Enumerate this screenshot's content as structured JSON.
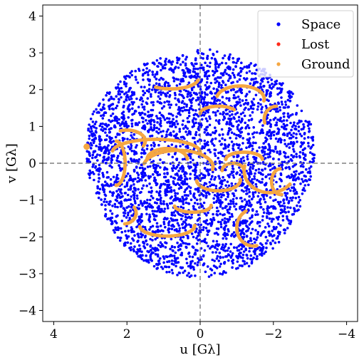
{
  "chart_data": {
    "type": "scatter",
    "title": "",
    "xlabel": "u [Gλ]",
    "ylabel": "v [Gλ]",
    "xlim": [
      4.3,
      -4.3
    ],
    "ylim": [
      -4.3,
      4.3
    ],
    "x_inverted": true,
    "xticks": [
      4,
      2,
      0,
      -2,
      -4
    ],
    "xtick_labels": [
      "4",
      "2",
      "0",
      "−2",
      "−4"
    ],
    "yticks": [
      -4,
      -3,
      -2,
      -1,
      0,
      1,
      2,
      3,
      4
    ],
    "ytick_labels": [
      "−4",
      "−3",
      "−2",
      "−1",
      "0",
      "1",
      "2",
      "3",
      "4"
    ],
    "reference_lines": {
      "u": 0,
      "v": 0,
      "style": "dashed",
      "color": "#808080"
    },
    "grid": false,
    "legend": {
      "position": "top-right",
      "entries": [
        {
          "label": "Space",
          "color": "#0000ff"
        },
        {
          "label": "Lost",
          "color": "#ff2a1a"
        },
        {
          "label": "Ground",
          "color": "#f5a742"
        }
      ]
    },
    "series": [
      {
        "name": "Space",
        "color": "#0000ff",
        "description_of_extent": "dense scattered coverage filling a disc of radius about 3 Gλ",
        "radius_max": 3.1
      },
      {
        "name": "Lost",
        "color": "#ff2a1a",
        "points": []
      },
      {
        "name": "Ground",
        "color": "#f5a742",
        "arcs": [
          {
            "cx": 0.8,
            "cy": 2.3,
            "rx": 0.75,
            "ry": 0.28,
            "t0": 3.3,
            "t1": 5.3
          },
          {
            "cx": -1.1,
            "cy": 1.75,
            "rx": 0.65,
            "ry": 0.35,
            "t0": 0.2,
            "t1": 3.3
          },
          {
            "cx": -0.5,
            "cy": 1.35,
            "rx": 0.5,
            "ry": 0.2,
            "t0": 0.0,
            "t1": 2.6
          },
          {
            "cx": -2.1,
            "cy": 1.2,
            "rx": 0.35,
            "ry": 0.35,
            "t0": -0.3,
            "t1": 1.5
          },
          {
            "cx": 2.0,
            "cy": 0.6,
            "rx": 0.5,
            "ry": 0.3,
            "t0": 1.2,
            "t1": 3.6
          },
          {
            "cx": 1.2,
            "cy": 0.3,
            "rx": 1.2,
            "ry": 0.35,
            "t0": 0.1,
            "t1": 3.2
          },
          {
            "cx": 0.6,
            "cy": -0.1,
            "rx": 0.95,
            "ry": 0.45,
            "t0": 0.2,
            "t1": 3.3
          },
          {
            "cx": 2.3,
            "cy": 0.0,
            "rx": 0.25,
            "ry": 0.6,
            "t0": 1.6,
            "t1": 4.7
          },
          {
            "cx": 0.9,
            "cy": 0.1,
            "rx": 0.55,
            "ry": 0.3,
            "t0": 0.0,
            "t1": 3.1
          },
          {
            "cx": -1.2,
            "cy": 0.1,
            "rx": 0.5,
            "ry": 0.2,
            "t0": 0.0,
            "t1": 3.1
          },
          {
            "cx": -0.9,
            "cy": -0.2,
            "rx": 0.3,
            "ry": 0.2,
            "t0": 0.0,
            "t1": 3.1
          },
          {
            "cx": -1.9,
            "cy": -0.2,
            "rx": 0.7,
            "ry": 0.6,
            "t0": 3.8,
            "t1": 6.5
          },
          {
            "cx": -0.5,
            "cy": -0.45,
            "rx": 0.6,
            "ry": 0.3,
            "t0": 3.1,
            "t1": 6.2
          },
          {
            "cx": 0.2,
            "cy": -1.15,
            "rx": 0.5,
            "ry": 0.18,
            "t0": 3.1,
            "t1": 6.2
          },
          {
            "cx": 2.1,
            "cy": -1.35,
            "rx": 0.35,
            "ry": 0.3,
            "t0": 2.6,
            "t1": 4.6
          },
          {
            "cx": 0.9,
            "cy": -1.7,
            "rx": 0.75,
            "ry": 0.28,
            "t0": 3.1,
            "t1": 6.2
          },
          {
            "cx": -1.45,
            "cy": -1.75,
            "rx": 0.45,
            "ry": 0.5,
            "t0": 4.5,
            "t1": 7.4
          },
          {
            "cx": -2.2,
            "cy": -0.5,
            "rx": 0.25,
            "ry": 0.35,
            "t0": 4.6,
            "t1": 7.8
          },
          {
            "cx": 3.1,
            "cy": 0.45,
            "rx": 0.04,
            "ry": 0.04,
            "t0": 0.0,
            "t1": 6.2
          }
        ]
      }
    ]
  }
}
